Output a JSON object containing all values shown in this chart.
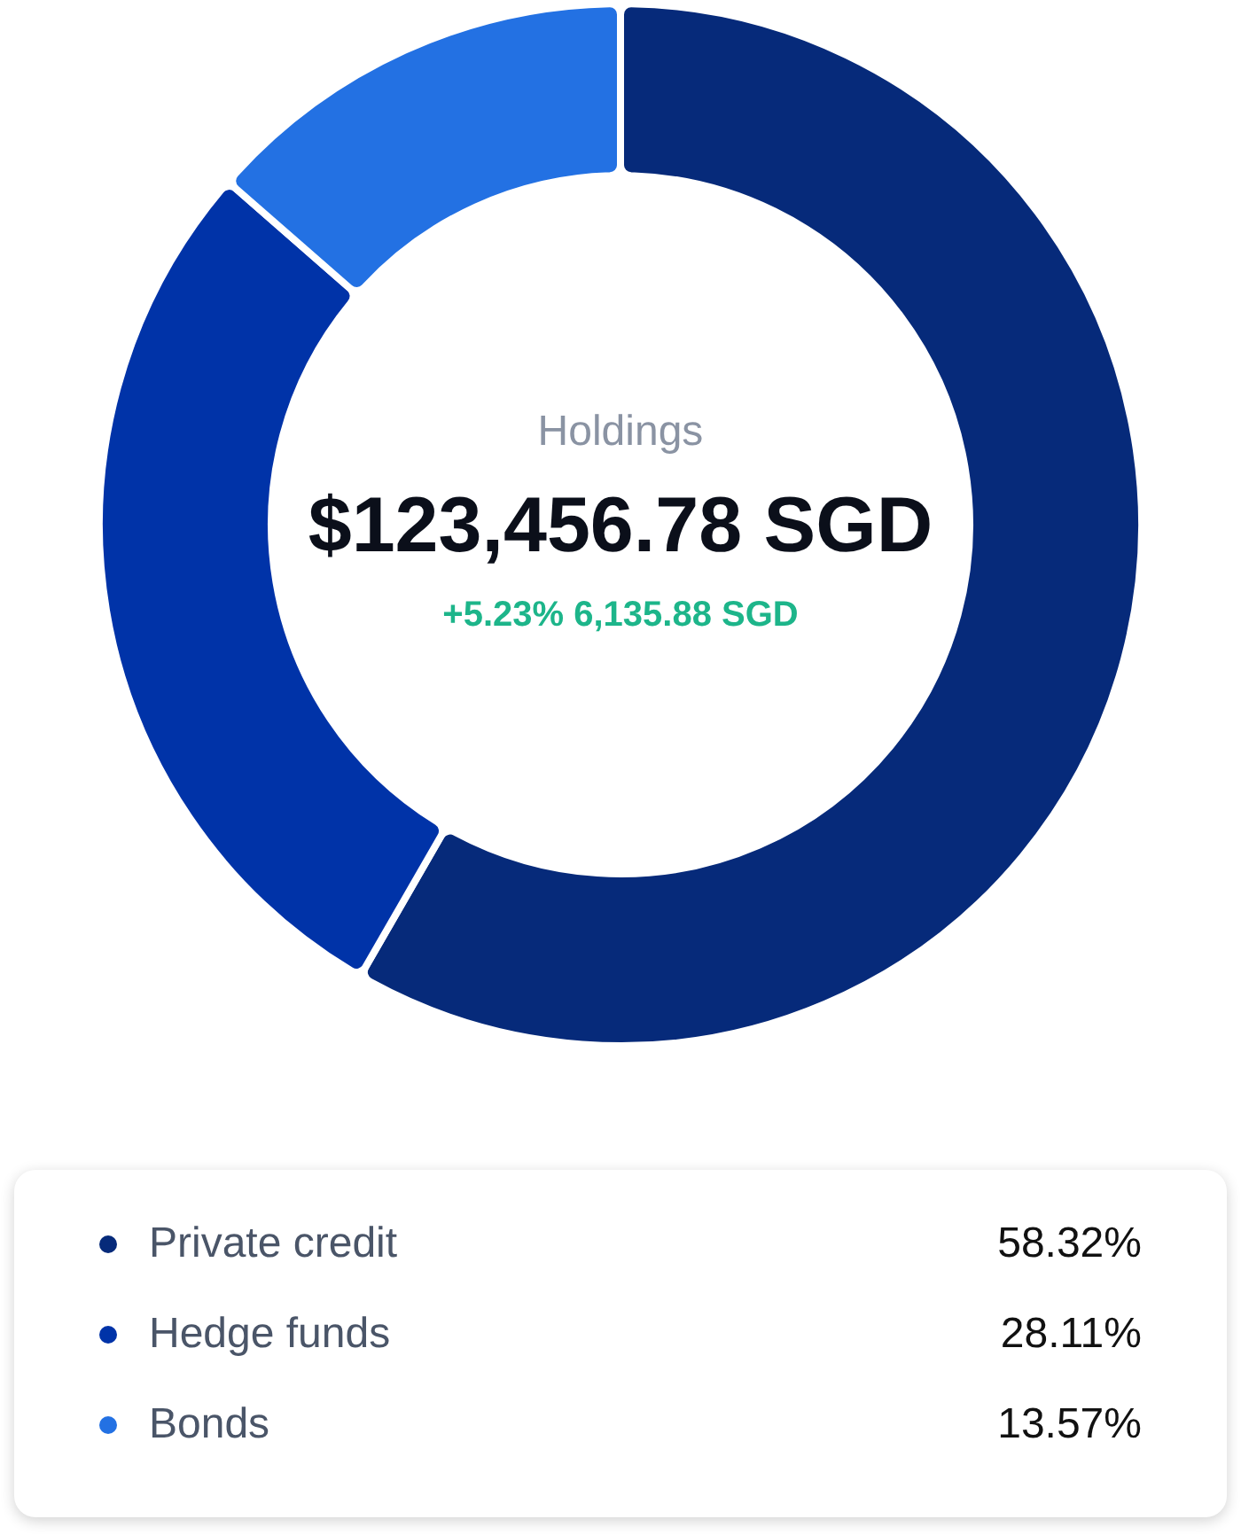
{
  "chart_data": {
    "type": "donut",
    "categories": [
      "Private credit",
      "Hedge funds",
      "Bonds"
    ],
    "values": [
      58.32,
      28.11,
      13.57
    ],
    "colors": [
      "#062a7a",
      "#0033a8",
      "#2371e3"
    ],
    "value_labels": [
      "58.32%",
      "28.11%",
      "13.57%"
    ],
    "legend": "bottom",
    "annotations": [
      "Holdings",
      "$123,456.78 SGD",
      "+5.23% 6,135.88 SGD"
    ]
  }
}
